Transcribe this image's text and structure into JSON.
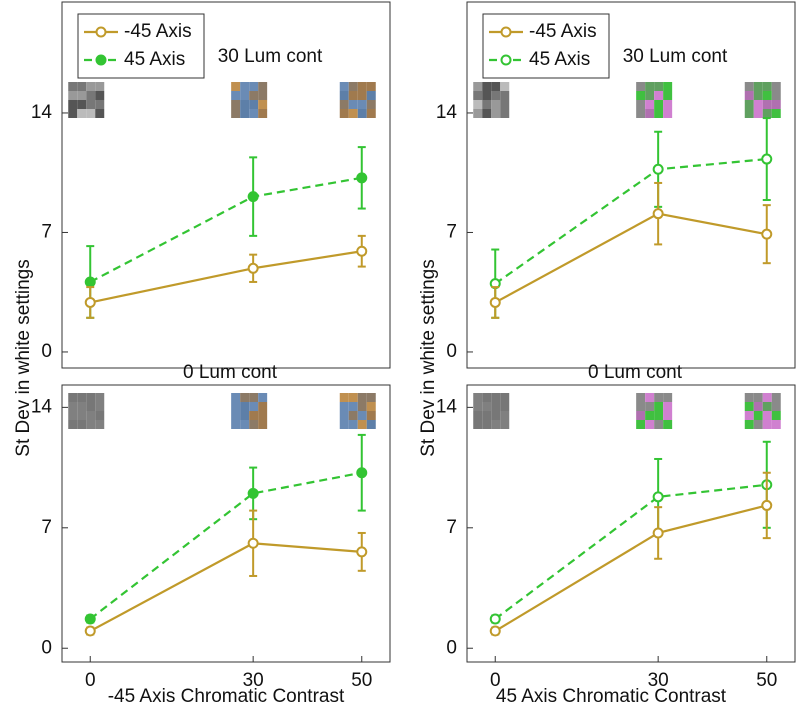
{
  "chart_data": [
    {
      "type": "line",
      "annotation": "30 Lum cont",
      "ylabel": "St Dev in white settings",
      "legend": "upper left",
      "x": [
        0,
        30,
        50
      ],
      "xlim": [
        -5.2,
        55.2
      ],
      "ylim": [
        -0.94,
        20.5
      ],
      "yticks": [
        0,
        7,
        14
      ],
      "series": [
        {
          "name": "-45 Axis",
          "color": "#c09a2a",
          "filled": false,
          "dashed": false,
          "values": [
            2.9,
            4.9,
            5.9
          ],
          "errors": [
            0.9,
            0.8,
            0.9
          ]
        },
        {
          "name": "45 Axis",
          "color": "#33c433",
          "filled": true,
          "dashed": true,
          "values": [
            4.1,
            9.1,
            10.2
          ],
          "errors": [
            2.1,
            2.3,
            1.8
          ]
        }
      ]
    },
    {
      "type": "line",
      "annotation": "30 Lum cont",
      "ylabel": "St Dev in white settings",
      "legend": "upper left",
      "x": [
        0,
        30,
        50
      ],
      "xlim": [
        -5.2,
        55.2
      ],
      "ylim": [
        -0.94,
        20.5
      ],
      "yticks": [
        0,
        7,
        14
      ],
      "series": [
        {
          "name": "-45 Axis",
          "color": "#c09a2a",
          "filled": false,
          "dashed": false,
          "values": [
            2.9,
            8.1,
            6.9
          ],
          "errors": [
            0.9,
            1.8,
            1.7
          ]
        },
        {
          "name": "45 Axis",
          "color": "#33c433",
          "filled": false,
          "dashed": true,
          "values": [
            4.0,
            10.7,
            11.3
          ],
          "errors": [
            2.0,
            2.2,
            2.4
          ]
        }
      ]
    },
    {
      "type": "line",
      "annotation": "0 Lum cont",
      "xlabel": "-45 Axis Chromatic Contrast",
      "x": [
        0,
        30,
        50
      ],
      "xlim": [
        -5.2,
        55.2
      ],
      "xticks": [
        0,
        30,
        50
      ],
      "ylim": [
        -0.8,
        15.3
      ],
      "yticks": [
        0,
        7,
        14
      ],
      "series": [
        {
          "name": "-45 Axis",
          "color": "#c09a2a",
          "filled": false,
          "dashed": false,
          "values": [
            1.0,
            6.1,
            5.6
          ],
          "errors": [
            0.2,
            1.9,
            1.1
          ]
        },
        {
          "name": "45 Axis",
          "color": "#33c433",
          "filled": true,
          "dashed": true,
          "values": [
            1.7,
            9.0,
            10.2
          ],
          "errors": [
            0.2,
            1.5,
            2.2
          ]
        }
      ]
    },
    {
      "type": "line",
      "annotation": "0 Lum cont",
      "xlabel": "45 Axis Chromatic Contrast",
      "x": [
        0,
        30,
        50
      ],
      "xlim": [
        -5.2,
        55.2
      ],
      "xticks": [
        0,
        30,
        50
      ],
      "ylim": [
        -0.8,
        15.3
      ],
      "yticks": [
        0,
        7,
        14
      ],
      "series": [
        {
          "name": "-45 Axis",
          "color": "#c09a2a",
          "filled": false,
          "dashed": false,
          "values": [
            1.0,
            6.7,
            8.3
          ],
          "errors": [
            0.2,
            1.5,
            1.9
          ]
        },
        {
          "name": "45 Axis",
          "color": "#33c433",
          "filled": false,
          "dashed": true,
          "values": [
            1.7,
            8.8,
            9.5
          ],
          "errors": [
            0.2,
            2.2,
            2.5
          ]
        }
      ]
    }
  ]
}
